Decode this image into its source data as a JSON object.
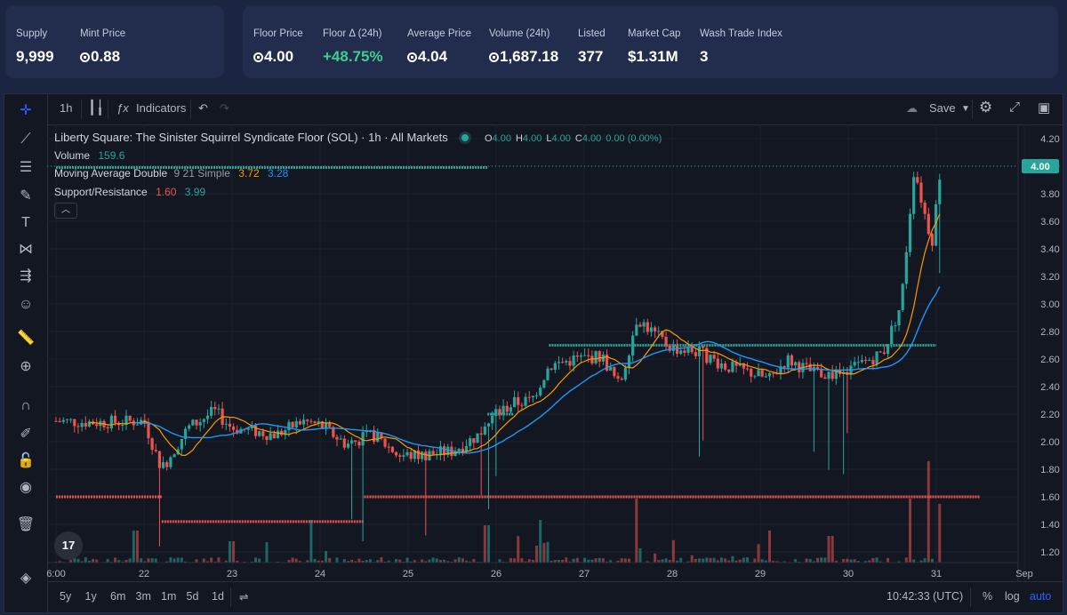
{
  "stats_left": [
    {
      "label": "Supply",
      "value": "9,999",
      "sol": false
    },
    {
      "label": "Mint Price",
      "value": "0.88",
      "sol": true
    }
  ],
  "stats_right": [
    {
      "label": "Floor Price",
      "value": "4.00",
      "sol": true,
      "pos": false
    },
    {
      "label": "Floor Δ (24h)",
      "value": "+48.75%",
      "sol": false,
      "pos": true
    },
    {
      "label": "Average Price",
      "value": "4.04",
      "sol": true,
      "pos": false
    },
    {
      "label": "Volume (24h)",
      "value": "1,687.18",
      "sol": true,
      "pos": false
    },
    {
      "label": "Listed",
      "value": "377",
      "sol": false,
      "pos": false
    },
    {
      "label": "Market Cap",
      "value": "$1.31M",
      "sol": false,
      "pos": false
    },
    {
      "label": "Wash Trade Index",
      "value": "3",
      "sol": false,
      "pos": false
    }
  ],
  "toolbar": {
    "interval": "1h",
    "indicators_label": "Indicators",
    "save_label": "Save"
  },
  "left_tools": [
    "crosshair-icon",
    "trend-line-icon",
    "fib-icon",
    "brush-icon",
    "text-icon",
    "pattern-icon",
    "prediction-icon",
    "emoji-icon",
    "ruler-icon",
    "zoom-in-icon",
    "magnet-icon",
    "lock-pencil-icon",
    "lock-icon",
    "eye-icon",
    "trash-icon",
    "layers-icon"
  ],
  "legend": {
    "title": "Liberty Square: The Sinister Squirrel Syndicate Floor (SOL)",
    "interval": "1h",
    "market": "All Markets",
    "ohlc": [
      {
        "k": "O",
        "v": "4.00"
      },
      {
        "k": "H",
        "v": "4.00"
      },
      {
        "k": "L",
        "v": "4.00"
      },
      {
        "k": "C",
        "v": "4.00"
      }
    ],
    "change": "0.00 (0.00%)",
    "volume_label": "Volume",
    "volume_value": "159.6",
    "ma_label": "Moving Average Double",
    "ma_params": "9 21 Simple",
    "ma_fast": "3.72",
    "ma_slow": "3.28",
    "sr_label": "Support/Resistance",
    "sr_low": "1.60",
    "sr_high": "3.99"
  },
  "bottom": {
    "ranges": [
      "5y",
      "1y",
      "6m",
      "3m",
      "1m",
      "5d",
      "1d"
    ],
    "time": "10:42:33 (UTC)",
    "pct": "%",
    "log": "log",
    "auto": "auto"
  },
  "colors": {
    "up": "#26a69a",
    "down": "#ef5350",
    "ma_fast": "#ff9800",
    "ma_slow": "#2196f3",
    "accent": "#2962ff",
    "support": "#ef5350",
    "resistance": "#26a69a"
  },
  "chart_data": {
    "type": "candlestick",
    "y_ticks": [
      "4.20",
      "4.00",
      "3.80",
      "3.60",
      "3.40",
      "3.20",
      "3.00",
      "2.80",
      "2.60",
      "2.40",
      "2.20",
      "2.00",
      "1.80",
      "1.60",
      "1.40",
      "1.20"
    ],
    "ylim": [
      1.2,
      4.2
    ],
    "x_ticks": [
      "6:00",
      "22",
      "23",
      "24",
      "25",
      "26",
      "27",
      "28",
      "29",
      "30",
      "31",
      "Sep"
    ],
    "last_price": "4.00",
    "resistance_levels": [
      {
        "value": 3.99,
        "from_day": 0,
        "to_day": 4.9
      },
      {
        "value": 2.7,
        "from_day": 5.6,
        "to_day": 10.0
      },
      {
        "value": 2.2,
        "from_day": 4.9,
        "to_day": 5.2
      }
    ],
    "support_levels": [
      {
        "value": 1.6,
        "from_day": 0,
        "to_day": 1.2
      },
      {
        "value": 1.42,
        "from_day": 1.2,
        "to_day": 3.5
      },
      {
        "value": 1.6,
        "from_day": 3.5,
        "to_day": 10.5
      }
    ],
    "close_path": [
      [
        0,
        2.15
      ],
      [
        0.5,
        2.14
      ],
      [
        1.0,
        2.15
      ],
      [
        1.2,
        1.8
      ],
      [
        1.5,
        2.1
      ],
      [
        1.8,
        2.22
      ],
      [
        2.0,
        2.1
      ],
      [
        2.5,
        2.05
      ],
      [
        2.8,
        2.15
      ],
      [
        3.0,
        2.12
      ],
      [
        3.3,
        1.98
      ],
      [
        3.6,
        2.05
      ],
      [
        3.9,
        1.9
      ],
      [
        4.1,
        1.9
      ],
      [
        4.5,
        1.93
      ],
      [
        4.8,
        2.05
      ],
      [
        5.0,
        2.2
      ],
      [
        5.2,
        2.28
      ],
      [
        5.4,
        2.3
      ],
      [
        5.6,
        2.55
      ],
      [
        5.9,
        2.6
      ],
      [
        6.2,
        2.62
      ],
      [
        6.4,
        2.4
      ],
      [
        6.6,
        2.9
      ],
      [
        6.8,
        2.78
      ],
      [
        7.0,
        2.68
      ],
      [
        7.3,
        2.65
      ],
      [
        7.6,
        2.55
      ],
      [
        7.9,
        2.5
      ],
      [
        8.1,
        2.45
      ],
      [
        8.3,
        2.6
      ],
      [
        8.6,
        2.5
      ],
      [
        8.9,
        2.48
      ],
      [
        9.1,
        2.55
      ],
      [
        9.4,
        2.65
      ],
      [
        9.6,
        3.0
      ],
      [
        9.75,
        4.0
      ],
      [
        9.85,
        3.7
      ],
      [
        9.95,
        3.45
      ],
      [
        10.05,
        4.0
      ]
    ],
    "volume_spikes": [
      [
        0.9,
        0.3
      ],
      [
        2.0,
        0.2
      ],
      [
        2.9,
        0.4
      ],
      [
        4.9,
        0.35
      ],
      [
        5.5,
        0.4
      ],
      [
        6.6,
        0.6
      ],
      [
        8.1,
        0.3
      ],
      [
        8.8,
        0.25
      ],
      [
        9.7,
        0.6
      ],
      [
        9.9,
        0.95
      ],
      [
        10.05,
        0.55
      ]
    ]
  }
}
